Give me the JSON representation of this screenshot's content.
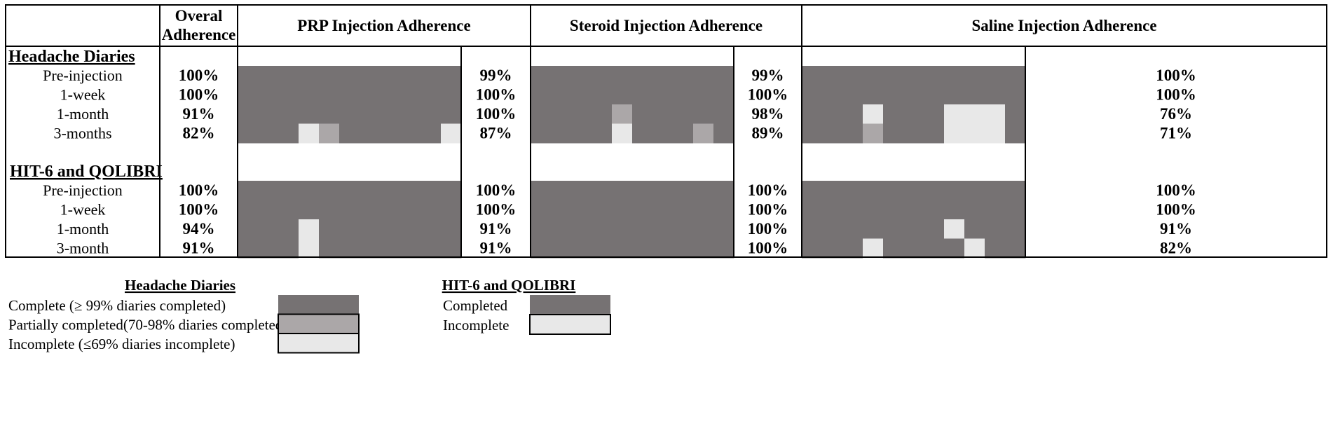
{
  "chart_data": {
    "type": "heatmap",
    "title": "",
    "columns": {
      "overall": "Overal Adherence",
      "groups": [
        "PRP Injection Adherence",
        "Steroid Injection  Adherence",
        "Saline Injection Adherence"
      ]
    },
    "status_colors": {
      "complete": "#767273",
      "partial": "#aba7a8",
      "incomplete": "#e8e8e8"
    },
    "sections": [
      {
        "name": "Headache Diaries",
        "rows": [
          {
            "label": "Pre-injection",
            "overall": "100%",
            "group_pct": [
              "99%",
              "99%",
              "100%"
            ],
            "cells": [
              [
                0,
                0,
                0,
                0,
                0,
                0,
                0,
                0,
                0,
                0,
                0
              ],
              [
                0,
                0,
                0,
                0,
                0,
                0,
                0,
                0,
                0,
                0
              ],
              [
                0,
                0,
                0,
                0,
                0,
                0,
                0,
                0,
                0,
                0,
                0
              ]
            ]
          },
          {
            "label": "1-week",
            "overall": "100%",
            "group_pct": [
              "100%",
              "100%",
              "100%"
            ],
            "cells": [
              [
                0,
                0,
                0,
                0,
                0,
                0,
                0,
                0,
                0,
                0,
                0
              ],
              [
                0,
                0,
                0,
                0,
                0,
                0,
                0,
                0,
                0,
                0
              ],
              [
                0,
                0,
                0,
                0,
                0,
                0,
                0,
                0,
                0,
                0,
                0
              ]
            ]
          },
          {
            "label": "1-month",
            "overall": "91%",
            "group_pct": [
              "100%",
              "98%",
              "76%"
            ],
            "cells": [
              [
                0,
                0,
                0,
                0,
                0,
                0,
                0,
                0,
                0,
                0,
                0
              ],
              [
                0,
                0,
                0,
                0,
                1,
                0,
                0,
                0,
                0,
                0
              ],
              [
                0,
                0,
                0,
                2,
                0,
                0,
                0,
                2,
                2,
                2,
                0
              ]
            ]
          },
          {
            "label": "3-months",
            "overall": "82%",
            "group_pct": [
              "87%",
              "89%",
              "71%"
            ],
            "cells": [
              [
                0,
                0,
                0,
                2,
                1,
                0,
                0,
                0,
                0,
                0,
                2
              ],
              [
                0,
                0,
                0,
                0,
                2,
                0,
                0,
                0,
                1,
                0
              ],
              [
                0,
                0,
                0,
                1,
                0,
                0,
                0,
                2,
                2,
                2,
                0
              ]
            ]
          }
        ]
      },
      {
        "name": "HIT-6 and QOLIBRI",
        "rows": [
          {
            "label": "Pre-injection",
            "overall": "100%",
            "group_pct": [
              "100%",
              "100%",
              "100%"
            ],
            "cells": [
              [
                0,
                0,
                0,
                0,
                0,
                0,
                0,
                0,
                0,
                0,
                0
              ],
              [
                0,
                0,
                0,
                0,
                0,
                0,
                0,
                0,
                0,
                0
              ],
              [
                0,
                0,
                0,
                0,
                0,
                0,
                0,
                0,
                0,
                0,
                0
              ]
            ]
          },
          {
            "label": "1-week",
            "overall": "100%",
            "group_pct": [
              "100%",
              "100%",
              "100%"
            ],
            "cells": [
              [
                0,
                0,
                0,
                0,
                0,
                0,
                0,
                0,
                0,
                0,
                0
              ],
              [
                0,
                0,
                0,
                0,
                0,
                0,
                0,
                0,
                0,
                0
              ],
              [
                0,
                0,
                0,
                0,
                0,
                0,
                0,
                0,
                0,
                0,
                0
              ]
            ]
          },
          {
            "label": "1-month",
            "overall": "94%",
            "group_pct": [
              "91%",
              "100%",
              "91%"
            ],
            "cells": [
              [
                0,
                0,
                0,
                2,
                0,
                0,
                0,
                0,
                0,
                0,
                0
              ],
              [
                0,
                0,
                0,
                0,
                0,
                0,
                0,
                0,
                0,
                0
              ],
              [
                0,
                0,
                0,
                0,
                0,
                0,
                0,
                2,
                0,
                0,
                0
              ]
            ]
          },
          {
            "label": "3-month",
            "overall": "91%",
            "group_pct": [
              "91%",
              "100%",
              "82%"
            ],
            "cells": [
              [
                0,
                0,
                0,
                2,
                0,
                0,
                0,
                0,
                0,
                0,
                0
              ],
              [
                0,
                0,
                0,
                0,
                0,
                0,
                0,
                0,
                0,
                0
              ],
              [
                0,
                0,
                0,
                2,
                0,
                0,
                0,
                0,
                2,
                0,
                0
              ]
            ]
          }
        ]
      }
    ],
    "legends": [
      {
        "title": "Headache Diaries",
        "items": [
          {
            "label": "Complete (≥ 99% diaries completed)",
            "status": "complete"
          },
          {
            "label": "Partially completed(70-98% diaries completed)",
            "status": "partial"
          },
          {
            "label": "Incomplete (≤69% diaries incomplete)",
            "status": "incomplete"
          }
        ]
      },
      {
        "title": "HIT-6 and QOLIBRI",
        "items": [
          {
            "label": "Completed",
            "status": "complete"
          },
          {
            "label": "Incomplete",
            "status": "incomplete"
          }
        ]
      }
    ]
  }
}
